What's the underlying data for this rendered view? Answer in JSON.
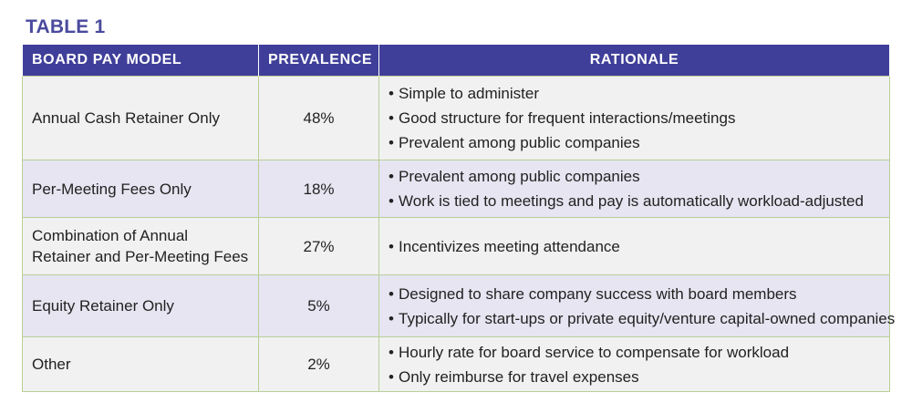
{
  "title": "TABLE 1",
  "columns": {
    "model": "BOARD PAY MODEL",
    "prevalence": "PREVALENCE",
    "rationale": "RATIONALE"
  },
  "bullet": "•",
  "rows": [
    {
      "model": "Annual Cash Retainer Only",
      "prevalence": "48%",
      "rationale": [
        "Simple to administer",
        "Good structure for frequent interactions/meetings",
        "Prevalent among public companies"
      ]
    },
    {
      "model": "Per-Meeting Fees Only",
      "prevalence": "18%",
      "rationale": [
        "Prevalent among public companies",
        "Work is tied to meetings and pay is automatically workload-adjusted"
      ]
    },
    {
      "model": "Combination of Annual Retainer and Per-Meeting Fees",
      "prevalence": "27%",
      "rationale": [
        "Incentivizes meeting attendance"
      ]
    },
    {
      "model": "Equity Retainer Only",
      "prevalence": "5%",
      "rationale": [
        "Designed to share company success with board members",
        "Typically for start-ups or private equity/venture capital-owned companies"
      ]
    },
    {
      "model": "Other",
      "prevalence": "2%",
      "rationale": [
        "Hourly rate for board service to compensate for workload",
        "Only reimburse for travel expenses"
      ]
    }
  ]
}
